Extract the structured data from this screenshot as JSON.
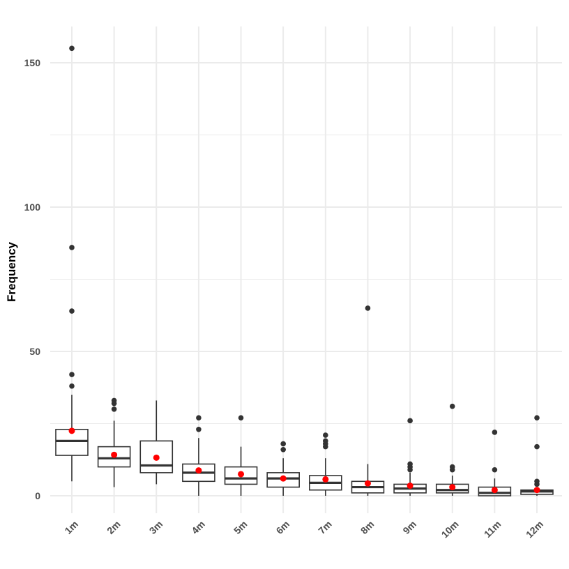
{
  "chart_data": {
    "type": "boxplot",
    "ylabel": "Frequency",
    "xlabel": "",
    "ylim": [
      -6,
      163
    ],
    "y_ticks": [
      0,
      50,
      100,
      150
    ],
    "grid": true,
    "categories": [
      "1m",
      "2m",
      "3m",
      "4m",
      "5m",
      "6m",
      "7m",
      "8m",
      "9m",
      "10m",
      "11m",
      "12m"
    ],
    "boxes": [
      {
        "category": "1m",
        "whisker_low": 5,
        "q1": 14,
        "median": 19,
        "q3": 23,
        "whisker_high": 35,
        "mean": 22.5,
        "outliers": [
          38,
          42,
          64,
          86,
          155
        ]
      },
      {
        "category": "2m",
        "whisker_low": 3,
        "q1": 10,
        "median": 13,
        "q3": 17,
        "whisker_high": 26,
        "mean": 14.2,
        "outliers": [
          30,
          32,
          33
        ]
      },
      {
        "category": "3m",
        "whisker_low": 4,
        "q1": 8,
        "median": 10.5,
        "q3": 19,
        "whisker_high": 33,
        "mean": 13.2,
        "outliers": []
      },
      {
        "category": "4m",
        "whisker_low": 0,
        "q1": 5,
        "median": 8,
        "q3": 11,
        "whisker_high": 20,
        "mean": 8.8,
        "outliers": [
          23,
          27
        ]
      },
      {
        "category": "5m",
        "whisker_low": 0,
        "q1": 4,
        "median": 6,
        "q3": 10,
        "whisker_high": 17,
        "mean": 7.5,
        "outliers": [
          27
        ]
      },
      {
        "category": "6m",
        "whisker_low": 0,
        "q1": 3,
        "median": 6,
        "q3": 8,
        "whisker_high": 13,
        "mean": 6,
        "outliers": [
          16,
          18
        ]
      },
      {
        "category": "7m",
        "whisker_low": 0,
        "q1": 2,
        "median": 4.5,
        "q3": 7,
        "whisker_high": 13,
        "mean": 5.7,
        "outliers": [
          17,
          18,
          19,
          21
        ]
      },
      {
        "category": "8m",
        "whisker_low": 0,
        "q1": 1,
        "median": 3,
        "q3": 5,
        "whisker_high": 11,
        "mean": 4.3,
        "outliers": [
          65
        ]
      },
      {
        "category": "9m",
        "whisker_low": 0,
        "q1": 1,
        "median": 2.5,
        "q3": 4,
        "whisker_high": 8,
        "mean": 3.5,
        "outliers": [
          9,
          10,
          11,
          26
        ]
      },
      {
        "category": "10m",
        "whisker_low": 0,
        "q1": 1,
        "median": 2,
        "q3": 4,
        "whisker_high": 7,
        "mean": 3,
        "outliers": [
          9,
          10,
          31
        ]
      },
      {
        "category": "11m",
        "whisker_low": 0,
        "q1": 0,
        "median": 1,
        "q3": 3,
        "whisker_high": 6,
        "mean": 2,
        "outliers": [
          9,
          22
        ]
      },
      {
        "category": "12m",
        "whisker_low": 0,
        "q1": 0.5,
        "median": 1.5,
        "q3": 2,
        "whisker_high": 3,
        "mean": 2,
        "outliers": [
          4,
          5,
          17,
          27
        ]
      }
    ],
    "colors": {
      "box_outline": "#333333",
      "outlier": "#333333",
      "mean_point": "#ff0000",
      "grid": "#ebebeb",
      "box_fill": "#ffffff"
    }
  }
}
